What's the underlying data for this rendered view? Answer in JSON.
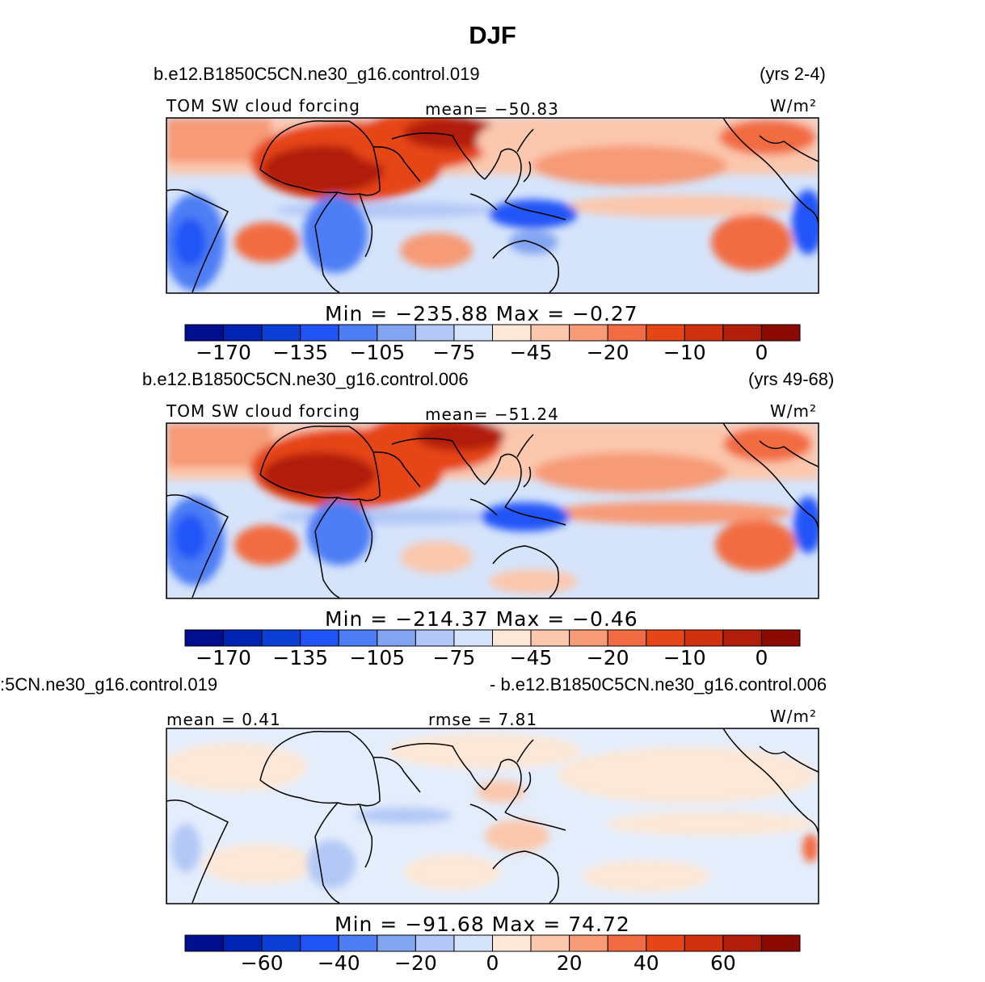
{
  "figure": {
    "title": "DJF"
  },
  "colors": {
    "scale": [
      "#000d8c",
      "#0023b2",
      "#0c3fd6",
      "#2154f7",
      "#4d7ef5",
      "#82a4f1",
      "#b3c8f6",
      "#d6e4fb",
      "#fde7d6",
      "#fbc7ad",
      "#f79a76",
      "#f26c43",
      "#e64517",
      "#d03110",
      "#b11f0c",
      "#8b0b04"
    ]
  },
  "panels": [
    {
      "case_left": "b.e12.B1850C5CN.ne30_g16.control.019",
      "case_right": "(yrs 2-4)",
      "label_left": "TOM SW cloud forcing",
      "label_center": "mean= -50.83",
      "units": "W/m²",
      "minmax": "Min = -235.88 Max = -0.27",
      "ticks": [
        "-170",
        "-135",
        "-105",
        "-75",
        "-45",
        "-20",
        "-10",
        "0"
      ]
    },
    {
      "case_left": "b.e12.B1850C5CN.ne30_g16.control.006",
      "case_right": "(yrs 49-68)",
      "label_left": "TOM SW cloud forcing",
      "label_center": "mean= -51.24",
      "units": "W/m²",
      "minmax": "Min = -214.37 Max = -0.46",
      "ticks": [
        "-170",
        "-135",
        "-105",
        "-75",
        "-45",
        "-20",
        "-10",
        "0"
      ]
    },
    {
      "case_left": ":5CN.ne30_g16.control.019",
      "case_right": "- b.e12.B1850C5CN.ne30_g16.control.006",
      "label_left": "mean = 0.41",
      "label_center": "rmse = 7.81",
      "units": "W/m²",
      "minmax": "Min = -91.68 Max = 74.72",
      "ticks": [
        "-60",
        "-40",
        "-20",
        "0",
        "20",
        "40",
        "60"
      ]
    }
  ]
}
